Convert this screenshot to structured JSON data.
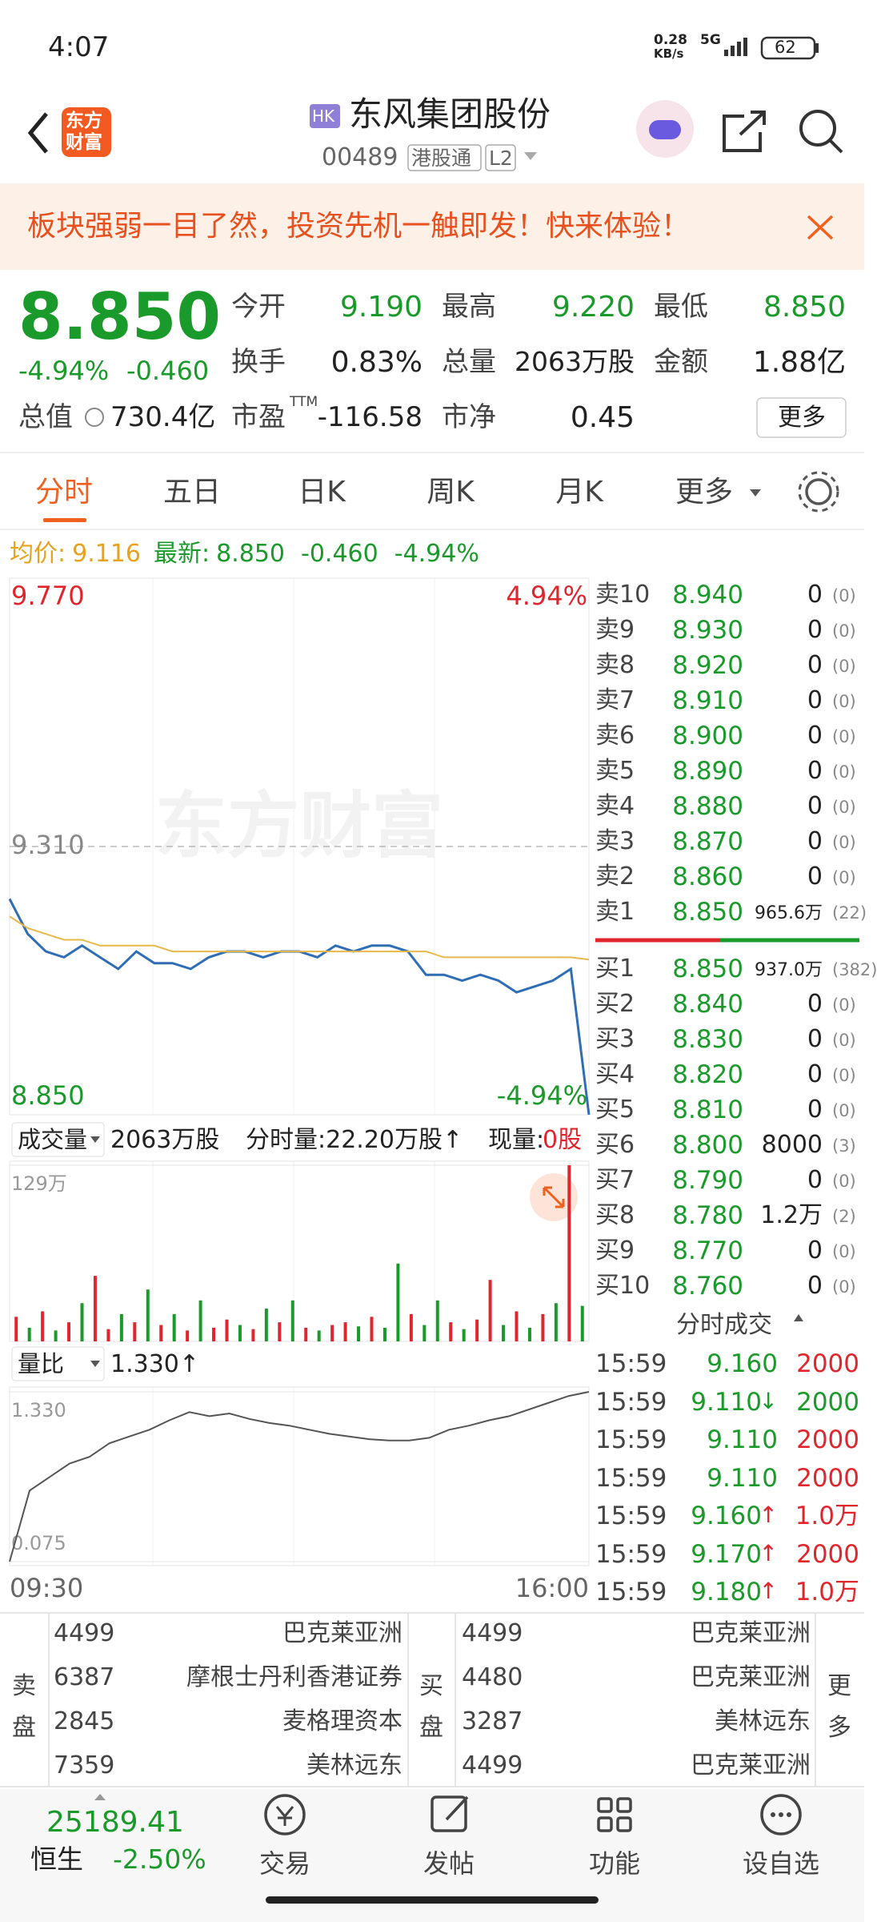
{
  "status": {
    "time": "4:07",
    "net": "0.28",
    "net_unit": "KB/s",
    "signal": "5G",
    "battery": "62"
  },
  "header": {
    "logo_top": "东方",
    "logo_bottom": "财富",
    "badge": "HK",
    "title": "东风集团股份",
    "code": "00489",
    "tag1": "港股通",
    "tag2": "L2"
  },
  "banner": {
    "text": "板块强弱一目了然，投资先机一触即发！快来体验！"
  },
  "quote": {
    "price": "8.850",
    "change_pct": "-4.94%",
    "change": "-0.460",
    "stats": [
      {
        "label": "今开",
        "value": "9.190"
      },
      {
        "label": "最高",
        "value": "9.220"
      },
      {
        "label": "最低",
        "value": "8.850"
      },
      {
        "label": "换手",
        "value": "0.83%"
      },
      {
        "label": "总量",
        "value": "2063万股"
      },
      {
        "label": "金额",
        "value": "1.88亿"
      },
      {
        "label": "总值",
        "value": "730.4亿"
      },
      {
        "label": "市盈",
        "sup": "TTM",
        "value": "-116.58"
      },
      {
        "label": "市净",
        "value": "0.45"
      }
    ],
    "more": "更多"
  },
  "tabs": [
    "分时",
    "五日",
    "日K",
    "周K",
    "月K",
    "更多"
  ],
  "info": {
    "avg_label": "均价:",
    "avg": "9.116",
    "last_label": "最新:",
    "last": "8.850",
    "change": "-0.460",
    "pct": "-4.94%"
  },
  "chart_data": [
    {
      "type": "line",
      "watermark": "东方财富",
      "ylim": [
        8.85,
        9.77
      ],
      "yticks": [
        {
          "value": 9.77,
          "label": "9.770"
        },
        {
          "value": 9.31,
          "label": "9.310"
        },
        {
          "value": 8.85,
          "label": "8.850"
        }
      ],
      "y2lim": [
        -4.94,
        4.94
      ],
      "y2ticks": [
        {
          "value": 4.94,
          "label": "4.94%"
        },
        {
          "value": -4.94,
          "label": "-4.94%"
        }
      ],
      "series": [
        {
          "color": "#2f6db5",
          "values": [
            9.22,
            9.16,
            9.13,
            9.12,
            9.14,
            9.12,
            9.1,
            9.13,
            9.11,
            9.11,
            9.1,
            9.12,
            9.13,
            9.13,
            9.12,
            9.13,
            9.13,
            9.12,
            9.14,
            9.13,
            9.14,
            9.14,
            9.13,
            9.09,
            9.09,
            9.08,
            9.09,
            9.08,
            9.06,
            9.07,
            9.08,
            9.1,
            8.85
          ]
        },
        {
          "color": "#e8b84a",
          "values": [
            9.19,
            9.17,
            9.16,
            9.15,
            9.15,
            9.14,
            9.14,
            9.14,
            9.14,
            9.13,
            9.13,
            9.13,
            9.13,
            9.13,
            9.13,
            9.13,
            9.13,
            9.13,
            9.13,
            9.13,
            9.13,
            9.13,
            9.13,
            9.13,
            9.12,
            9.12,
            9.12,
            9.12,
            9.12,
            9.12,
            9.12,
            9.12,
            9.116
          ]
        }
      ]
    },
    {
      "type": "bar",
      "ylim": [
        0,
        129
      ],
      "yticks": [
        {
          "value": 129,
          "label": "129万"
        }
      ],
      "values": [
        18,
        10,
        22,
        8,
        14,
        28,
        48,
        9,
        20,
        14,
        38,
        12,
        20,
        8,
        30,
        10,
        16,
        12,
        9,
        24,
        14,
        30,
        10,
        8,
        12,
        14,
        11,
        18,
        10,
        57,
        20,
        12,
        30,
        14,
        9,
        16,
        45,
        12,
        22,
        10,
        20,
        28,
        129,
        26
      ],
      "colors": [
        "#e0262c",
        "#1a9a2a",
        "#e0262c",
        "#1a9a2a",
        "#e0262c",
        "#1a9a2a",
        "#e0262c",
        "#e0262c",
        "#1a9a2a",
        "#e0262c",
        "#1a9a2a",
        "#e0262c",
        "#1a9a2a",
        "#e0262c",
        "#1a9a2a",
        "#e0262c",
        "#e0262c",
        "#1a9a2a",
        "#e0262c",
        "#1a9a2a",
        "#e0262c",
        "#1a9a2a",
        "#e0262c",
        "#1a9a2a",
        "#e0262c",
        "#e0262c",
        "#1a9a2a",
        "#e0262c",
        "#1a9a2a",
        "#1a9a2a",
        "#e0262c",
        "#1a9a2a",
        "#1a9a2a",
        "#e0262c",
        "#1a9a2a",
        "#e0262c",
        "#e0262c",
        "#1a9a2a",
        "#e0262c",
        "#1a9a2a",
        "#e0262c",
        "#1a9a2a",
        "#e0262c",
        "#1a9a2a"
      ]
    },
    {
      "type": "line",
      "ylim": [
        0.075,
        1.33
      ],
      "yticks": [
        {
          "value": 1.33,
          "label": "1.330"
        },
        {
          "value": 0.075,
          "label": "0.075"
        }
      ],
      "time_labels": [
        "09:30",
        "16:00"
      ],
      "series": [
        {
          "color": "#555555",
          "values": [
            0.075,
            0.6,
            0.7,
            0.8,
            0.85,
            0.95,
            1.0,
            1.05,
            1.12,
            1.18,
            1.15,
            1.17,
            1.13,
            1.1,
            1.08,
            1.05,
            1.02,
            1.0,
            0.98,
            0.97,
            0.97,
            0.99,
            1.05,
            1.08,
            1.12,
            1.15,
            1.2,
            1.25,
            1.3,
            1.33
          ]
        }
      ]
    }
  ],
  "volume_header": {
    "selector": "成交量",
    "total": "2063万股",
    "period": "分时量:22.20万股↑",
    "now_label": "现量:",
    "now": "0股"
  },
  "ratio_header": {
    "selector": "量比",
    "value": "1.330↑"
  },
  "order_book": {
    "asks": [
      {
        "side": "卖10",
        "price": "8.940",
        "volume": "0",
        "count": "(0)"
      },
      {
        "side": "卖9",
        "price": "8.930",
        "volume": "0",
        "count": "(0)"
      },
      {
        "side": "卖8",
        "price": "8.920",
        "volume": "0",
        "count": "(0)"
      },
      {
        "side": "卖7",
        "price": "8.910",
        "volume": "0",
        "count": "(0)"
      },
      {
        "side": "卖6",
        "price": "8.900",
        "volume": "0",
        "count": "(0)"
      },
      {
        "side": "卖5",
        "price": "8.890",
        "volume": "0",
        "count": "(0)"
      },
      {
        "side": "卖4",
        "price": "8.880",
        "volume": "0",
        "count": "(0)"
      },
      {
        "side": "卖3",
        "price": "8.870",
        "volume": "0",
        "count": "(0)"
      },
      {
        "side": "卖2",
        "price": "8.860",
        "volume": "0",
        "count": "(0)"
      },
      {
        "side": "卖1",
        "price": "8.850",
        "volume": "965.6万",
        "count": "(22)"
      }
    ],
    "bids": [
      {
        "side": "买1",
        "price": "8.850",
        "volume": "937.0万",
        "count": "(382)"
      },
      {
        "side": "买2",
        "price": "8.840",
        "volume": "0",
        "count": "(0)"
      },
      {
        "side": "买3",
        "price": "8.830",
        "volume": "0",
        "count": "(0)"
      },
      {
        "side": "买4",
        "price": "8.820",
        "volume": "0",
        "count": "(0)"
      },
      {
        "side": "买5",
        "price": "8.810",
        "volume": "0",
        "count": "(0)"
      },
      {
        "side": "买6",
        "price": "8.800",
        "volume": "8000",
        "count": "(3)"
      },
      {
        "side": "买7",
        "price": "8.790",
        "volume": "0",
        "count": "(0)"
      },
      {
        "side": "买8",
        "price": "8.780",
        "volume": "1.2万",
        "count": "(2)"
      },
      {
        "side": "买9",
        "price": "8.770",
        "volume": "0",
        "count": "(0)"
      },
      {
        "side": "买10",
        "price": "8.760",
        "volume": "0",
        "count": "(0)"
      }
    ]
  },
  "trades": {
    "title": "分时成交",
    "rows": [
      {
        "time": "15:59",
        "price": "9.160",
        "volume": "2000",
        "vol_color": "#e0262c"
      },
      {
        "time": "15:59",
        "price": "9.110",
        "arrow": "↓",
        "volume": "2000",
        "vol_color": "#1a9a2a"
      },
      {
        "time": "15:59",
        "price": "9.110",
        "volume": "2000",
        "vol_color": "#e0262c"
      },
      {
        "time": "15:59",
        "price": "9.110",
        "volume": "2000",
        "vol_color": "#e0262c"
      },
      {
        "time": "15:59",
        "price": "9.160",
        "arrow": "↑",
        "volume": "1.0万",
        "vol_color": "#e0262c"
      },
      {
        "time": "15:59",
        "price": "9.170",
        "arrow": "↑",
        "volume": "2000",
        "vol_color": "#e0262c"
      },
      {
        "time": "15:59",
        "price": "9.180",
        "arrow": "↑",
        "volume": "1.0万",
        "vol_color": "#e0262c"
      }
    ]
  },
  "brokers": {
    "sell_label": "卖盘",
    "buy_label": "买盘",
    "more": "更多",
    "sell": [
      {
        "id": "4499",
        "name": "巴克莱亚洲"
      },
      {
        "id": "6387",
        "name": "摩根士丹利香港证券"
      },
      {
        "id": "2845",
        "name": "麦格理资本"
      },
      {
        "id": "7359",
        "name": "美林远东"
      }
    ],
    "buy": [
      {
        "id": "4499",
        "name": "巴克莱亚洲"
      },
      {
        "id": "4480",
        "name": "巴克莱亚洲"
      },
      {
        "id": "3287",
        "name": "美林远东"
      },
      {
        "id": "4499",
        "name": "巴克莱亚洲"
      }
    ]
  },
  "bottom": {
    "index_value": "25189.41",
    "index_name": "恒生",
    "index_pct": "-2.50%",
    "tabs": [
      "交易",
      "发帖",
      "功能",
      "设自选"
    ]
  }
}
